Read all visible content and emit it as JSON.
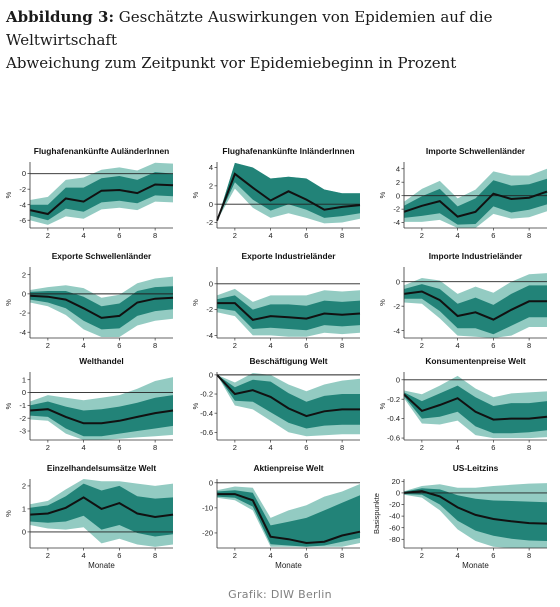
{
  "header": {
    "label": "Abbildung 3:",
    "title": "Geschätzte Auswirkungen von Epidemien auf die Weltwirtschaft",
    "subtitle": "Abweichung zum Zeitpunkt vor Epidemiebeginn in Prozent"
  },
  "credit": "Grafik: DIW Berlin",
  "colors": {
    "outer_band": "#93cbc2",
    "inner_band": "#228378",
    "median_line": "#111111",
    "zero_line": "#222222"
  },
  "chart_data": [
    {
      "type": "area",
      "title": "Flughafenankünfte AuländerInnen",
      "ylabel": "%",
      "xlabel": "",
      "x": [
        1,
        2,
        3,
        4,
        5,
        6,
        7,
        8,
        9
      ],
      "xticks": [
        2,
        4,
        6,
        8
      ],
      "ylim": [
        -7,
        1.5
      ],
      "yticks": [
        -6,
        -4,
        -2,
        0
      ],
      "series": [
        {
          "role": "median",
          "values": [
            -4.7,
            -5.2,
            -3.2,
            -3.6,
            -2.2,
            -2.1,
            -2.5,
            -1.4,
            -1.5
          ]
        },
        {
          "role": "inner_band",
          "lower": [
            -5.4,
            -6.0,
            -4.5,
            -4.9,
            -3.7,
            -3.5,
            -3.8,
            -2.8,
            -2.9
          ],
          "upper": [
            -4.0,
            -4.0,
            -1.8,
            -1.8,
            -0.6,
            -0.3,
            -0.8,
            0.2,
            0.0
          ]
        },
        {
          "role": "outer_band",
          "lower": [
            -6.0,
            -6.6,
            -5.5,
            -5.8,
            -4.6,
            -4.4,
            -4.7,
            -3.6,
            -3.7
          ],
          "upper": [
            -3.4,
            -3.0,
            -0.8,
            -0.5,
            0.5,
            0.8,
            0.4,
            1.4,
            1.3
          ]
        }
      ]
    },
    {
      "type": "area",
      "title": "Flughafenankünfte InländerInnen",
      "ylabel": "%",
      "xlabel": "",
      "x": [
        1,
        2,
        3,
        4,
        5,
        6,
        7,
        8,
        9
      ],
      "xticks": [
        2,
        4,
        6,
        8
      ],
      "ylim": [
        -2.6,
        4.6
      ],
      "yticks": [
        -2,
        0,
        2,
        4
      ],
      "series": [
        {
          "role": "median",
          "values": [
            -1.8,
            3.3,
            1.8,
            0.4,
            1.4,
            0.5,
            -0.6,
            -0.3,
            -0.1
          ]
        },
        {
          "role": "inner_band",
          "lower": [
            -1.8,
            2.4,
            0.5,
            -0.7,
            0.0,
            -0.6,
            -1.5,
            -1.3,
            -1.0
          ]
        },
        {
          "role": "outer_band",
          "lower": [
            -1.8,
            1.7,
            -0.4,
            -1.5,
            -1.0,
            -1.5,
            -2.1,
            -2.0,
            -1.6
          ],
          "upper": [
            -1.8,
            4.5,
            4.0,
            2.8,
            3.0,
            2.8,
            1.6,
            1.2,
            1.2
          ]
        }
      ]
    },
    {
      "type": "area",
      "title": "Importe Schwellenländer",
      "ylabel": "%",
      "xlabel": "",
      "x": [
        1,
        2,
        3,
        4,
        5,
        6,
        7,
        8,
        9
      ],
      "xticks": [
        2,
        4,
        6,
        8
      ],
      "ylim": [
        -4.8,
        5
      ],
      "yticks": [
        -4,
        -2,
        0,
        2,
        4
      ],
      "series": [
        {
          "role": "median",
          "values": [
            -2.4,
            -1.5,
            -0.8,
            -3.1,
            -2.4,
            0.3,
            -0.5,
            -0.3,
            0.6
          ]
        },
        {
          "role": "inner_band",
          "lower": [
            -3.3,
            -3.0,
            -2.6,
            -4.3,
            -4.2,
            -1.6,
            -2.5,
            -2.1,
            -1.3
          ],
          "upper": [
            -1.5,
            -0.1,
            1.0,
            -1.6,
            -0.4,
            2.3,
            1.5,
            1.7,
            2.5
          ]
        },
        {
          "role": "outer_band",
          "lower": [
            -3.9,
            -3.9,
            -3.6,
            -4.8,
            -4.8,
            -2.7,
            -3.4,
            -3.2,
            -2.3
          ],
          "upper": [
            -0.9,
            1.0,
            2.2,
            -0.4,
            0.9,
            3.6,
            3.0,
            3.0,
            4.0
          ]
        }
      ]
    },
    {
      "type": "area",
      "title": "Exporte Schwellenländer",
      "ylabel": "%",
      "xlabel": "",
      "x": [
        1,
        2,
        3,
        4,
        5,
        6,
        7,
        8,
        9
      ],
      "xticks": [
        2,
        4,
        6,
        8
      ],
      "ylim": [
        -4.6,
        2.8
      ],
      "yticks": [
        -4,
        -2,
        0,
        2
      ],
      "series": [
        {
          "role": "median",
          "values": [
            -0.2,
            -0.3,
            -0.6,
            -1.5,
            -2.5,
            -2.3,
            -0.9,
            -0.5,
            -0.4
          ]
        },
        {
          "role": "inner_band",
          "lower": [
            -0.6,
            -0.9,
            -1.5,
            -2.8,
            -3.7,
            -3.6,
            -2.3,
            -1.8,
            -1.6
          ],
          "upper": [
            0.2,
            0.3,
            0.3,
            -0.3,
            -1.3,
            -1.0,
            0.3,
            0.7,
            0.8
          ]
        },
        {
          "role": "outer_band",
          "lower": [
            -0.9,
            -1.3,
            -2.2,
            -3.7,
            -4.5,
            -4.5,
            -3.3,
            -2.8,
            -2.6
          ],
          "upper": [
            0.4,
            0.7,
            0.9,
            0.6,
            -0.4,
            -0.1,
            1.1,
            1.6,
            1.8
          ]
        }
      ]
    },
    {
      "type": "area",
      "title": "Exporte Industrieländer",
      "ylabel": "%",
      "xlabel": "",
      "x": [
        1,
        2,
        3,
        4,
        5,
        6,
        7,
        8,
        9
      ],
      "xticks": [
        2,
        4,
        6,
        8
      ],
      "ylim": [
        -4.2,
        1.3
      ],
      "yticks": [
        -4,
        -2,
        0
      ],
      "series": [
        {
          "role": "median",
          "values": [
            -1.5,
            -1.5,
            -2.8,
            -2.5,
            -2.6,
            -2.7,
            -2.3,
            -2.4,
            -2.3
          ]
        },
        {
          "role": "inner_band",
          "lower": [
            -1.9,
            -2.1,
            -3.5,
            -3.4,
            -3.5,
            -3.6,
            -3.2,
            -3.3,
            -3.2
          ],
          "upper": [
            -1.2,
            -0.9,
            -2.0,
            -1.6,
            -1.6,
            -1.7,
            -1.3,
            -1.4,
            -1.3
          ]
        },
        {
          "role": "outer_band",
          "lower": [
            -2.2,
            -2.5,
            -4.0,
            -4.0,
            -4.1,
            -4.1,
            -3.8,
            -3.9,
            -3.8
          ],
          "upper": [
            -0.9,
            -0.4,
            -1.4,
            -0.9,
            -0.9,
            -0.9,
            -0.5,
            -0.6,
            -0.5
          ]
        }
      ]
    },
    {
      "type": "area",
      "title": "Importe Industrieländer",
      "ylabel": "%",
      "xlabel": "",
      "x": [
        1,
        2,
        3,
        4,
        5,
        6,
        7,
        8,
        9
      ],
      "xticks": [
        2,
        4,
        6,
        8
      ],
      "ylim": [
        -4.6,
        1.2
      ],
      "yticks": [
        -4,
        -2,
        0
      ],
      "series": [
        {
          "role": "median",
          "values": [
            -1.0,
            -0.8,
            -1.5,
            -2.8,
            -2.5,
            -3.1,
            -2.3,
            -1.6,
            -1.6
          ]
        },
        {
          "role": "inner_band",
          "lower": [
            -1.4,
            -1.4,
            -2.4,
            -3.8,
            -3.8,
            -4.3,
            -3.6,
            -2.9,
            -2.9
          ],
          "upper": [
            -0.6,
            -0.2,
            -0.6,
            -1.8,
            -1.3,
            -1.9,
            -1.0,
            -0.3,
            -0.3
          ]
        },
        {
          "role": "outer_band",
          "lower": [
            -1.7,
            -1.8,
            -3.0,
            -4.4,
            -4.5,
            -4.6,
            -4.4,
            -3.7,
            -3.7
          ],
          "upper": [
            -0.3,
            0.3,
            0.1,
            -1.0,
            -0.4,
            -0.9,
            0.0,
            0.6,
            0.7
          ]
        }
      ]
    },
    {
      "type": "area",
      "title": "Welthandel",
      "ylabel": "%",
      "xlabel": "",
      "x": [
        1,
        2,
        3,
        4,
        5,
        6,
        7,
        8,
        9
      ],
      "xticks": [
        2,
        4,
        6,
        8
      ],
      "ylim": [
        -3.7,
        1.6
      ],
      "yticks": [
        -3,
        -2,
        -1,
        0,
        1
      ],
      "series": [
        {
          "role": "median",
          "values": [
            -1.4,
            -1.3,
            -1.9,
            -2.4,
            -2.4,
            -2.2,
            -1.9,
            -1.6,
            -1.4
          ]
        },
        {
          "role": "inner_band",
          "lower": [
            -1.8,
            -1.9,
            -2.8,
            -3.4,
            -3.4,
            -3.2,
            -3.0,
            -2.8,
            -2.6
          ],
          "upper": [
            -1.0,
            -0.7,
            -1.1,
            -1.4,
            -1.3,
            -1.1,
            -0.8,
            -0.4,
            -0.2
          ]
        },
        {
          "role": "outer_band",
          "lower": [
            -2.1,
            -2.2,
            -3.2,
            -3.7,
            -3.7,
            -3.6,
            -3.5,
            -3.4,
            -3.3
          ],
          "upper": [
            -0.7,
            -0.2,
            -0.4,
            -0.6,
            -0.4,
            -0.2,
            0.3,
            0.9,
            1.2
          ]
        }
      ]
    },
    {
      "type": "area",
      "title": "Beschäftigung Welt",
      "ylabel": "%",
      "xlabel": "",
      "x": [
        1,
        2,
        3,
        4,
        5,
        6,
        7,
        8,
        9
      ],
      "xticks": [
        2,
        4,
        6,
        8
      ],
      "ylim": [
        -0.68,
        0.03
      ],
      "yticks": [
        -0.6,
        -0.4,
        -0.2,
        0
      ],
      "series": [
        {
          "role": "median",
          "values": [
            0.0,
            -0.2,
            -0.16,
            -0.23,
            -0.35,
            -0.43,
            -0.38,
            -0.36,
            -0.36
          ]
        },
        {
          "role": "inner_band",
          "lower": [
            0.0,
            -0.27,
            -0.28,
            -0.39,
            -0.5,
            -0.56,
            -0.53,
            -0.52,
            -0.52
          ],
          "upper": [
            0.0,
            -0.13,
            -0.05,
            -0.07,
            -0.19,
            -0.28,
            -0.22,
            -0.2,
            -0.2
          ]
        },
        {
          "role": "outer_band",
          "lower": [
            0.0,
            -0.32,
            -0.36,
            -0.48,
            -0.6,
            -0.64,
            -0.63,
            -0.62,
            -0.62
          ],
          "upper": [
            0.0,
            -0.08,
            0.02,
            0.0,
            -0.1,
            -0.17,
            -0.1,
            -0.06,
            -0.04
          ]
        }
      ]
    },
    {
      "type": "area",
      "title": "Konsumentenpreise Welt",
      "ylabel": "%",
      "xlabel": "",
      "x": [
        1,
        2,
        3,
        4,
        5,
        6,
        7,
        8,
        9
      ],
      "xticks": [
        2,
        4,
        6,
        8
      ],
      "ylim": [
        -0.62,
        0.08
      ],
      "yticks": [
        -0.6,
        -0.4,
        -0.2,
        0
      ],
      "series": [
        {
          "role": "median",
          "values": [
            -0.15,
            -0.32,
            -0.26,
            -0.19,
            -0.33,
            -0.41,
            -0.4,
            -0.4,
            -0.38
          ]
        },
        {
          "role": "inner_band",
          "lower": [
            -0.17,
            -0.4,
            -0.38,
            -0.33,
            -0.48,
            -0.55,
            -0.55,
            -0.54,
            -0.52
          ],
          "upper": [
            -0.13,
            -0.22,
            -0.14,
            -0.06,
            -0.18,
            -0.27,
            -0.24,
            -0.24,
            -0.22
          ]
        },
        {
          "role": "outer_band",
          "lower": [
            -0.19,
            -0.45,
            -0.46,
            -0.42,
            -0.57,
            -0.6,
            -0.6,
            -0.6,
            -0.59
          ],
          "upper": [
            -0.11,
            -0.15,
            -0.06,
            0.04,
            -0.09,
            -0.18,
            -0.14,
            -0.13,
            -0.12
          ]
        }
      ]
    },
    {
      "type": "area",
      "title": "Einzelhandelsumsätze Welt",
      "ylabel": "%",
      "xlabel": "Monate",
      "x": [
        1,
        2,
        3,
        4,
        5,
        6,
        7,
        8,
        9
      ],
      "xticks": [
        2,
        4,
        6,
        8
      ],
      "ylim": [
        -0.7,
        2.3
      ],
      "yticks": [
        0,
        1,
        2
      ],
      "series": [
        {
          "role": "median",
          "values": [
            0.75,
            0.8,
            1.05,
            1.5,
            1.0,
            1.25,
            0.8,
            0.65,
            0.75
          ]
        },
        {
          "role": "inner_band",
          "lower": [
            0.45,
            0.4,
            0.45,
            0.7,
            0.1,
            0.3,
            -0.05,
            -0.2,
            -0.1
          ],
          "upper": [
            1.05,
            1.15,
            1.55,
            2.1,
            1.8,
            2.0,
            1.55,
            1.45,
            1.5
          ]
        },
        {
          "role": "outer_band",
          "lower": [
            0.3,
            0.15,
            0.1,
            0.2,
            -0.5,
            -0.3,
            -0.55,
            -0.65,
            -0.55
          ],
          "upper": [
            1.2,
            1.35,
            1.85,
            2.3,
            2.2,
            2.2,
            2.1,
            2.0,
            2.1
          ]
        }
      ]
    },
    {
      "type": "area",
      "title": "Aktienpreise Welt",
      "ylabel": "",
      "xlabel": "Monate",
      "x": [
        1,
        2,
        3,
        4,
        5,
        6,
        7,
        8,
        9
      ],
      "xticks": [
        2,
        4,
        6,
        8
      ],
      "ylim": [
        -26,
        1.5
      ],
      "yticks": [
        -20,
        -10,
        0
      ],
      "series": [
        {
          "role": "median",
          "values": [
            -4.5,
            -4.5,
            -7.0,
            -21.5,
            -22.5,
            -24.0,
            -23.5,
            -21.0,
            -19.5
          ]
        },
        {
          "role": "inner_band",
          "lower": [
            -5.5,
            -6.0,
            -9.5,
            -24.5,
            -25.0,
            -25.5,
            -25.0,
            -23.5,
            -22.0
          ],
          "upper": [
            -3.5,
            -3.0,
            -4.0,
            -17.0,
            -15.5,
            -14.0,
            -11.0,
            -8.0,
            -5.0
          ]
        },
        {
          "role": "outer_band",
          "lower": [
            -6.0,
            -7.0,
            -11.0,
            -25.5,
            -25.5,
            -25.5,
            -25.5,
            -25.5,
            -24.0
          ],
          "upper": [
            -3.0,
            -1.5,
            -2.0,
            -14.0,
            -11.0,
            -9.0,
            -5.5,
            -3.5,
            -0.5
          ]
        }
      ]
    },
    {
      "type": "area",
      "title": "US-Leitzins",
      "ylabel": "Basispunkte",
      "xlabel": "Monate",
      "x": [
        1,
        2,
        3,
        4,
        5,
        6,
        7,
        8,
        9
      ],
      "xticks": [
        2,
        4,
        6,
        8
      ],
      "ylim": [
        -95,
        24
      ],
      "yticks": [
        -80,
        -60,
        -40,
        -20,
        0,
        20
      ],
      "series": [
        {
          "role": "median",
          "values": [
            0,
            3,
            -6,
            -25,
            -38,
            -45,
            -49,
            -52,
            -53
          ]
        },
        {
          "role": "inner_band",
          "lower": [
            -2,
            -3,
            -20,
            -48,
            -65,
            -74,
            -79,
            -82,
            -83
          ],
          "upper": [
            2,
            8,
            6,
            -4,
            -10,
            -13,
            -14,
            -15,
            -16
          ]
        },
        {
          "role": "outer_band",
          "lower": [
            -3,
            -8,
            -30,
            -63,
            -83,
            -93,
            -95,
            -95,
            -95
          ],
          "upper": [
            3,
            12,
            15,
            9,
            9,
            12,
            14,
            16,
            17
          ]
        }
      ]
    }
  ]
}
